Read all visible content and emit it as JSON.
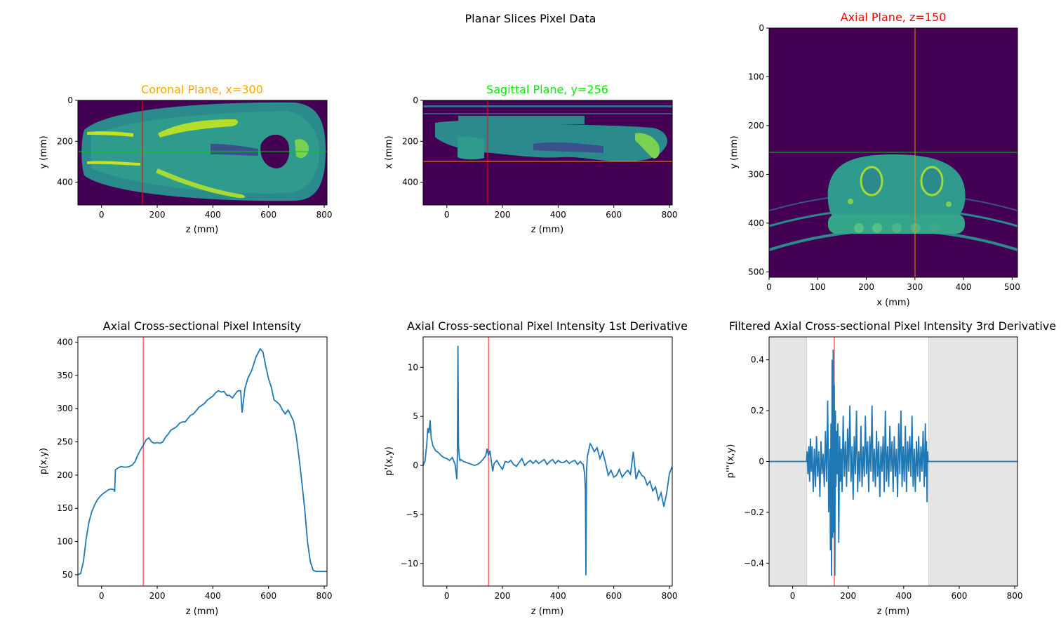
{
  "figure": {
    "suptitle": "Planar Slices Pixel Data"
  },
  "colors": {
    "line": "#1f77b4",
    "marker_red": "#ff0000",
    "marker_green": "#00cc00",
    "marker_orange": "#ff8c00",
    "title_orange": "#ffa500",
    "title_green": "#00ee00",
    "title_red": "#ff0000",
    "viridis_dark": "#440154",
    "shade": "#e5e5e5"
  },
  "chart_data": [
    {
      "type": "heatmap",
      "title": "Coronal Plane, x=300",
      "xlabel": "z (mm)",
      "ylabel": "y (mm)",
      "xlim": [
        -85,
        810
      ],
      "ylim": [
        511,
        0
      ],
      "xticks": [
        0,
        200,
        400,
        600,
        800
      ],
      "yticks": [
        0,
        200,
        400
      ],
      "vline_z": 150,
      "hline_y": 256
    },
    {
      "type": "heatmap",
      "title": "Sagittal Plane, y=256",
      "xlabel": "z (mm)",
      "ylabel": "x (mm)",
      "xlim": [
        -85,
        810
      ],
      "ylim": [
        511,
        0
      ],
      "xticks": [
        0,
        200,
        400,
        600,
        800
      ],
      "yticks": [
        0,
        200,
        400
      ],
      "vline_z": 150,
      "hline_x": 300
    },
    {
      "type": "heatmap",
      "title": "Axial Plane, z=150",
      "xlabel": "x (mm)",
      "ylabel": "y (mm)",
      "xlim": [
        0,
        511
      ],
      "ylim": [
        511,
        0
      ],
      "xticks": [
        0,
        100,
        200,
        300,
        400,
        500
      ],
      "yticks": [
        0,
        100,
        200,
        300,
        400,
        500
      ],
      "vline_x": 300,
      "hline_y": 256
    },
    {
      "type": "line",
      "title": "Axial Cross-sectional Pixel Intensity",
      "xlabel": "z (mm)",
      "ylabel": "p(x,y)",
      "xlim": [
        -85,
        810
      ],
      "ylim": [
        33,
        408
      ],
      "xticks": [
        0,
        200,
        400,
        600,
        800
      ],
      "yticks": [
        50,
        100,
        150,
        200,
        250,
        300,
        350,
        400
      ],
      "vline": 150,
      "x": [
        -85,
        -75,
        -65,
        -55,
        -45,
        -35,
        -25,
        -15,
        -5,
        5,
        15,
        25,
        35,
        45,
        47,
        50,
        60,
        70,
        80,
        90,
        100,
        110,
        120,
        130,
        140,
        150,
        160,
        170,
        180,
        190,
        200,
        210,
        220,
        230,
        240,
        250,
        260,
        270,
        280,
        290,
        300,
        310,
        320,
        330,
        340,
        350,
        360,
        370,
        380,
        390,
        400,
        410,
        420,
        430,
        440,
        450,
        460,
        470,
        480,
        490,
        500,
        505,
        515,
        525,
        540,
        555,
        570,
        580,
        590,
        600,
        610,
        620,
        630,
        640,
        650,
        660,
        670,
        680,
        690,
        700,
        710,
        720,
        730,
        740,
        750,
        760,
        770,
        780,
        790,
        800,
        810
      ],
      "y": [
        50,
        52,
        70,
        105,
        130,
        145,
        155,
        163,
        168,
        172,
        175,
        178,
        179,
        178,
        175,
        208,
        211,
        213,
        212,
        212,
        213,
        215,
        220,
        230,
        238,
        245,
        253,
        256,
        250,
        248,
        249,
        248,
        250,
        257,
        262,
        268,
        270,
        273,
        278,
        280,
        280,
        285,
        290,
        292,
        297,
        302,
        305,
        308,
        313,
        316,
        319,
        324,
        327,
        325,
        326,
        320,
        320,
        316,
        322,
        327,
        327,
        294,
        330,
        345,
        358,
        378,
        390,
        385,
        364,
        345,
        332,
        313,
        310,
        306,
        298,
        292,
        298,
        290,
        281,
        257,
        225,
        188,
        148,
        100,
        70,
        57,
        55,
        55,
        55,
        55,
        55
      ]
    },
    {
      "type": "line",
      "title": "Axial Cross-sectional Pixel Intensity 1st Derivative",
      "xlabel": "z (mm)",
      "ylabel": "p'(x,y)",
      "xlim": [
        -85,
        810
      ],
      "ylim": [
        -12.3,
        13.1
      ],
      "xticks": [
        0,
        200,
        400,
        600,
        800
      ],
      "yticks": [
        -10,
        -5,
        0,
        5,
        10
      ],
      "vline": 150,
      "x": [
        -85,
        -78,
        -72,
        -68,
        -64,
        -60,
        -56,
        -50,
        -40,
        -30,
        -20,
        -10,
        0,
        10,
        20,
        30,
        36,
        38,
        40,
        42,
        44,
        46,
        48,
        50,
        60,
        70,
        80,
        90,
        100,
        110,
        120,
        130,
        140,
        145,
        150,
        155,
        160,
        165,
        170,
        180,
        190,
        200,
        210,
        220,
        230,
        240,
        250,
        260,
        270,
        280,
        290,
        300,
        310,
        320,
        330,
        340,
        350,
        360,
        370,
        380,
        390,
        400,
        410,
        420,
        430,
        440,
        450,
        460,
        470,
        480,
        485,
        490,
        495,
        498,
        500,
        502,
        505,
        510,
        515,
        520,
        530,
        540,
        550,
        560,
        570,
        580,
        590,
        600,
        610,
        620,
        630,
        640,
        650,
        660,
        670,
        680,
        690,
        700,
        710,
        720,
        730,
        740,
        750,
        760,
        770,
        780,
        790,
        800,
        810
      ],
      "y": [
        0,
        0.5,
        2.2,
        3.8,
        3.3,
        4.6,
        2.8,
        2.0,
        1.5,
        1.3,
        1.0,
        0.8,
        0.7,
        0.5,
        0.8,
        0.1,
        -1.4,
        1.0,
        12.2,
        2.0,
        1.2,
        0.6,
        0.5,
        0.6,
        0.4,
        0.3,
        0.2,
        0.1,
        0.0,
        0.1,
        0.3,
        0.6,
        1.0,
        1.7,
        1.0,
        1.5,
        0.4,
        -0.6,
        0.2,
        0.5,
        0.0,
        -0.4,
        0.4,
        0.3,
        0.5,
        0.1,
        -0.1,
        0.3,
        0.7,
        0.0,
        0.3,
        0.5,
        0.2,
        0.5,
        0.2,
        0.4,
        0.6,
        0.1,
        0.4,
        0.6,
        0.2,
        0.5,
        0.3,
        0.3,
        0.5,
        0.2,
        0.4,
        0.5,
        0.1,
        0.4,
        0.2,
        0.1,
        -0.8,
        -2.5,
        -11.2,
        -0.6,
        0.9,
        1.5,
        2.2,
        2.0,
        1.4,
        1.8,
        0.7,
        1.4,
        0.3,
        -1.0,
        -0.5,
        -1.2,
        -1.0,
        -0.4,
        -1.2,
        -0.8,
        -0.5,
        -0.9,
        1.4,
        -1.4,
        -0.5,
        -1.0,
        -1.2,
        -2.0,
        -1.6,
        -2.6,
        -2.2,
        -3.5,
        -2.8,
        -4.2,
        -2.8,
        -0.8,
        -0.1
      ]
    },
    {
      "type": "line",
      "title": "Filtered Axial Cross-sectional Pixel Intensity 3rd Derivative",
      "xlabel": "z (mm)",
      "ylabel": "p'''(x,y)",
      "xlim": [
        -85,
        810
      ],
      "ylim": [
        -0.49,
        0.49
      ],
      "xticks": [
        0,
        200,
        400,
        600,
        800
      ],
      "yticks": [
        -0.4,
        -0.2,
        0.0,
        0.2,
        0.4
      ],
      "vline": 150,
      "shaded_ranges": [
        [
          -85,
          50
        ],
        [
          490,
          810
        ]
      ],
      "x": [
        -85,
        50,
        52,
        55,
        58,
        61,
        64,
        67,
        70,
        74,
        78,
        82,
        86,
        90,
        94,
        98,
        102,
        106,
        110,
        114,
        118,
        122,
        126,
        130,
        134,
        136,
        138,
        140,
        142,
        144,
        146,
        148,
        150,
        152,
        154,
        156,
        158,
        160,
        163,
        166,
        169,
        172,
        175,
        178,
        182,
        186,
        190,
        194,
        198,
        202,
        206,
        210,
        214,
        218,
        222,
        226,
        230,
        234,
        238,
        242,
        246,
        250,
        254,
        258,
        262,
        266,
        270,
        274,
        278,
        282,
        286,
        290,
        294,
        298,
        302,
        306,
        310,
        314,
        318,
        322,
        326,
        330,
        334,
        338,
        342,
        346,
        350,
        354,
        358,
        362,
        366,
        370,
        374,
        378,
        382,
        386,
        390,
        394,
        398,
        402,
        406,
        410,
        414,
        418,
        422,
        426,
        430,
        434,
        438,
        442,
        446,
        450,
        454,
        458,
        462,
        466,
        470,
        474,
        478,
        480,
        482,
        484,
        486,
        488,
        490,
        810
      ],
      "y": [
        0,
        0,
        0.04,
        -0.05,
        0.06,
        -0.08,
        0.09,
        -0.04,
        0.06,
        -0.12,
        0.05,
        -0.1,
        0.1,
        -0.06,
        0.04,
        -0.14,
        0.08,
        -0.05,
        0.03,
        -0.1,
        0.12,
        -0.08,
        0.24,
        -0.2,
        0.05,
        -0.35,
        0.15,
        -0.45,
        0.4,
        -0.3,
        0.44,
        -0.28,
        0.3,
        -0.45,
        0.2,
        -0.1,
        0.12,
        -0.05,
        0.15,
        -0.32,
        0.1,
        -0.08,
        0.05,
        -0.12,
        0.18,
        -0.06,
        0.08,
        -0.1,
        0.13,
        -0.04,
        0.22,
        -0.08,
        0.06,
        -0.15,
        0.1,
        -0.05,
        0.2,
        -0.12,
        0.04,
        -0.08,
        0.14,
        -0.1,
        0.06,
        -0.06,
        0.18,
        -0.05,
        0.08,
        -0.12,
        0.1,
        -0.04,
        0.22,
        -0.08,
        0.05,
        -0.1,
        0.12,
        -0.06,
        0.08,
        -0.14,
        0.06,
        -0.04,
        0.1,
        -0.12,
        0.2,
        -0.08,
        0.06,
        -0.1,
        0.14,
        -0.04,
        0.08,
        -0.12,
        0.1,
        -0.06,
        0.05,
        -0.14,
        0.15,
        -0.05,
        0.2,
        -0.1,
        0.06,
        -0.08,
        0.14,
        -0.12,
        0.08,
        -0.04,
        0.1,
        -0.06,
        0.18,
        -0.1,
        0.05,
        -0.12,
        0.08,
        -0.06,
        0.1,
        -0.08,
        0.06,
        -0.04,
        0.12,
        -0.1,
        0.15,
        -0.06,
        0.08,
        -0.16,
        0.04,
        0.0,
        0,
        0
      ]
    }
  ]
}
